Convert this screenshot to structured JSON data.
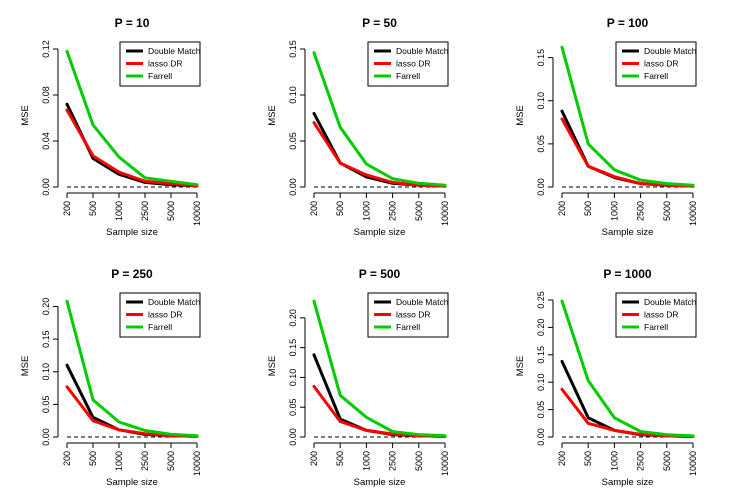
{
  "chart_data": [
    {
      "type": "line",
      "title": "P = 10",
      "xlabel": "Sample size",
      "ylabel": "MSE",
      "categories": [
        "200",
        "500",
        "1000",
        "2500",
        "5000",
        "10000"
      ],
      "ylim": [
        0,
        0.12
      ],
      "yticks": [
        "0.00",
        "0.04",
        "0.08",
        "0.12"
      ],
      "reference_line": 0,
      "legend_position": "top-right",
      "series": [
        {
          "name": "Double Match",
          "color": "#000000",
          "values": [
            0.072,
            0.025,
            0.011,
            0.004,
            0.002,
            0.001
          ]
        },
        {
          "name": "lasso DR",
          "color": "#ff0000",
          "values": [
            0.067,
            0.027,
            0.013,
            0.005,
            0.003,
            0.001
          ]
        },
        {
          "name": "Farrell",
          "color": "#00cc00",
          "values": [
            0.118,
            0.054,
            0.026,
            0.008,
            0.005,
            0.002
          ]
        }
      ]
    },
    {
      "type": "line",
      "title": "P = 50",
      "xlabel": "Sample size",
      "ylabel": "MSE",
      "categories": [
        "200",
        "500",
        "1000",
        "2500",
        "5000",
        "10000"
      ],
      "ylim": [
        0,
        0.15
      ],
      "yticks": [
        "0.00",
        "0.05",
        "0.10",
        "0.15"
      ],
      "reference_line": 0,
      "legend_position": "top-right",
      "series": [
        {
          "name": "Double Match",
          "color": "#000000",
          "values": [
            0.08,
            0.026,
            0.011,
            0.004,
            0.002,
            0.001
          ]
        },
        {
          "name": "lasso DR",
          "color": "#ff0000",
          "values": [
            0.07,
            0.026,
            0.013,
            0.005,
            0.002,
            0.001
          ]
        },
        {
          "name": "Farrell",
          "color": "#00cc00",
          "values": [
            0.146,
            0.065,
            0.025,
            0.009,
            0.004,
            0.002
          ]
        }
      ]
    },
    {
      "type": "line",
      "title": "P = 100",
      "xlabel": "Sample size",
      "ylabel": "MSE",
      "categories": [
        "200",
        "500",
        "1000",
        "2500",
        "5000",
        "10000"
      ],
      "ylim": [
        0,
        0.16
      ],
      "yticks": [
        "0.00",
        "0.05",
        "0.10",
        "0.15"
      ],
      "reference_line": 0,
      "legend_position": "top-right",
      "series": [
        {
          "name": "Double Match",
          "color": "#000000",
          "values": [
            0.088,
            0.024,
            0.011,
            0.004,
            0.002,
            0.001
          ]
        },
        {
          "name": "lasso DR",
          "color": "#ff0000",
          "values": [
            0.079,
            0.024,
            0.012,
            0.004,
            0.002,
            0.001
          ]
        },
        {
          "name": "Farrell",
          "color": "#00cc00",
          "values": [
            0.162,
            0.05,
            0.02,
            0.008,
            0.004,
            0.002
          ]
        }
      ]
    },
    {
      "type": "line",
      "title": "P = 250",
      "xlabel": "Sample size",
      "ylabel": "MSE",
      "categories": [
        "200",
        "500",
        "1000",
        "2500",
        "5000",
        "10000"
      ],
      "ylim": [
        0,
        0.21
      ],
      "yticks": [
        "0.00",
        "0.05",
        "0.10",
        "0.15",
        "0.20"
      ],
      "reference_line": 0,
      "legend_position": "top-right",
      "series": [
        {
          "name": "Double Match",
          "color": "#000000",
          "values": [
            0.11,
            0.03,
            0.011,
            0.004,
            0.002,
            0.001
          ]
        },
        {
          "name": "lasso DR",
          "color": "#ff0000",
          "values": [
            0.077,
            0.025,
            0.011,
            0.005,
            0.002,
            0.001
          ]
        },
        {
          "name": "Farrell",
          "color": "#00cc00",
          "values": [
            0.208,
            0.057,
            0.023,
            0.01,
            0.004,
            0.002
          ]
        }
      ]
    },
    {
      "type": "line",
      "title": "P = 500",
      "xlabel": "Sample size",
      "ylabel": "MSE",
      "categories": [
        "200",
        "500",
        "1000",
        "2500",
        "5000",
        "10000"
      ],
      "ylim": [
        0,
        0.23
      ],
      "yticks": [
        "0.00",
        "0.05",
        "0.10",
        "0.15",
        "0.20"
      ],
      "reference_line": 0,
      "legend_position": "top-right",
      "series": [
        {
          "name": "Double Match",
          "color": "#000000",
          "values": [
            0.138,
            0.03,
            0.011,
            0.004,
            0.002,
            0.001
          ]
        },
        {
          "name": "lasso DR",
          "color": "#ff0000",
          "values": [
            0.085,
            0.026,
            0.011,
            0.005,
            0.002,
            0.001
          ]
        },
        {
          "name": "Farrell",
          "color": "#00cc00",
          "values": [
            0.228,
            0.07,
            0.033,
            0.009,
            0.004,
            0.002
          ]
        }
      ]
    },
    {
      "type": "line",
      "title": "P = 1000",
      "xlabel": "Sample size",
      "ylabel": "MSE",
      "categories": [
        "200",
        "500",
        "1000",
        "2500",
        "5000",
        "10000"
      ],
      "ylim": [
        0,
        0.25
      ],
      "yticks": [
        "0.00",
        "0.05",
        "0.10",
        "0.15",
        "0.20",
        "0.25"
      ],
      "reference_line": 0,
      "legend_position": "top-right",
      "series": [
        {
          "name": "Double Match",
          "color": "#000000",
          "values": [
            0.138,
            0.035,
            0.012,
            0.004,
            0.002,
            0.001
          ]
        },
        {
          "name": "lasso DR",
          "color": "#ff0000",
          "values": [
            0.087,
            0.025,
            0.012,
            0.005,
            0.002,
            0.001
          ]
        },
        {
          "name": "Farrell",
          "color": "#00cc00",
          "values": [
            0.248,
            0.103,
            0.035,
            0.01,
            0.004,
            0.002
          ]
        }
      ]
    }
  ]
}
